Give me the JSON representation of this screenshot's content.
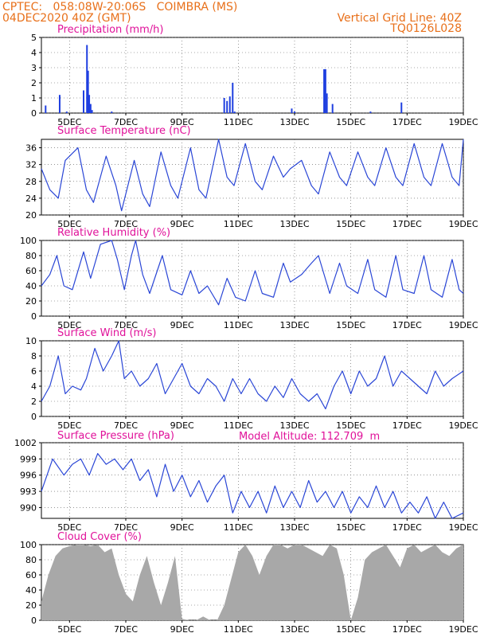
{
  "header": {
    "left_line1": "CPTEC:   058:08W-20:06S   COIMBRA (MS)",
    "left_line2": "04DEC2020 40Z (GMT)",
    "right_line1": "Vertical Grid Line: 40Z",
    "right_line2": "TQ0126L028"
  },
  "extra_label": "Model Altitude: 112.709  m",
  "x_ticks": [
    "5DEC",
    "7DEC",
    "9DEC",
    "11DEC",
    "13DEC",
    "15DEC",
    "17DEC",
    "19DEC"
  ],
  "colors": {
    "header": "#e8701a",
    "title": "#e0129a",
    "line": "#2a46d6",
    "bar": "#1f3fe0",
    "cloud": "#a8a8a8",
    "grid": "#555555"
  },
  "chart_data": [
    {
      "type": "bar",
      "title": "Precipitation (mm/h)",
      "ylim": [
        0,
        5
      ],
      "yticks": [
        "0",
        "1",
        "2",
        "3",
        "4",
        "5"
      ],
      "x": [
        "4.15",
        "4.65",
        "4.9",
        "5.5",
        "5.62",
        "5.66",
        "5.7",
        "5.75",
        "5.8",
        "6.5",
        "10.5",
        "10.6",
        "10.7",
        "10.8",
        "10.87",
        "12.9",
        "13.0",
        "14.05",
        "14.1",
        "14.15",
        "14.35",
        "15.7",
        "16.8"
      ],
      "values": [
        0.5,
        1.2,
        0.1,
        1.5,
        4.5,
        2.8,
        1.2,
        0.6,
        0.2,
        0.1,
        1.0,
        0.8,
        1.1,
        2.0,
        0.1,
        0.3,
        0.1,
        2.9,
        2.9,
        1.3,
        0.6,
        0.1,
        0.7
      ]
    },
    {
      "type": "line",
      "title": "Surface Temperature (nC)",
      "ylim": [
        20,
        38
      ],
      "yticks": [
        "20",
        "24",
        "28",
        "32",
        "36"
      ],
      "x": [
        4,
        4.3,
        4.6,
        4.85,
        5.3,
        5.6,
        5.85,
        6.3,
        6.65,
        6.85,
        7.3,
        7.6,
        7.85,
        8.25,
        8.6,
        8.85,
        9.3,
        9.6,
        9.85,
        10.3,
        10.6,
        10.85,
        11.25,
        11.6,
        11.85,
        12.25,
        12.6,
        12.85,
        13.25,
        13.6,
        13.85,
        14.25,
        14.6,
        14.85,
        15.25,
        15.6,
        15.85,
        16.25,
        16.6,
        16.85,
        17.25,
        17.6,
        17.85,
        18.25,
        18.6,
        18.85,
        19
      ],
      "values": [
        31,
        26,
        24,
        33,
        36,
        26,
        23,
        34,
        27,
        21,
        33,
        25,
        22,
        35,
        27,
        24,
        36,
        26,
        24,
        38,
        29,
        27,
        37,
        28,
        26,
        34,
        29,
        31,
        33,
        27,
        25,
        35,
        29,
        27,
        35,
        29,
        27,
        36,
        29,
        27,
        37,
        29,
        27,
        37,
        29,
        27,
        38
      ]
    },
    {
      "type": "line",
      "title": "Relative Humidity (%)",
      "ylim": [
        0,
        100
      ],
      "yticks": [
        "0",
        "20",
        "40",
        "60",
        "80",
        "100"
      ],
      "x": [
        4,
        4.3,
        4.55,
        4.8,
        5.1,
        5.5,
        5.75,
        6.1,
        6.5,
        6.7,
        6.95,
        7.2,
        7.35,
        7.6,
        7.85,
        8.3,
        8.6,
        9.0,
        9.3,
        9.6,
        9.9,
        10.3,
        10.6,
        10.9,
        11.25,
        11.6,
        11.85,
        12.25,
        12.6,
        12.85,
        13.25,
        13.6,
        13.85,
        14.25,
        14.6,
        14.85,
        15.25,
        15.6,
        15.85,
        16.25,
        16.6,
        16.85,
        17.25,
        17.6,
        17.85,
        18.25,
        18.6,
        18.85,
        19
      ],
      "values": [
        40,
        55,
        80,
        40,
        35,
        85,
        50,
        95,
        100,
        75,
        35,
        80,
        100,
        55,
        30,
        80,
        35,
        28,
        60,
        30,
        40,
        15,
        50,
        25,
        20,
        60,
        30,
        25,
        70,
        45,
        55,
        70,
        80,
        30,
        70,
        40,
        30,
        75,
        35,
        25,
        80,
        35,
        30,
        80,
        35,
        25,
        75,
        35,
        30
      ]
    },
    {
      "type": "line",
      "title": "Surface Wind (m/s)",
      "ylim": [
        0,
        10
      ],
      "yticks": [
        "0",
        "2",
        "4",
        "6",
        "8",
        "10"
      ],
      "x": [
        4,
        4.3,
        4.6,
        4.85,
        5.1,
        5.4,
        5.6,
        5.9,
        6.2,
        6.5,
        6.75,
        6.95,
        7.2,
        7.5,
        7.8,
        8.1,
        8.4,
        8.7,
        9.0,
        9.3,
        9.6,
        9.9,
        10.2,
        10.5,
        10.8,
        11.1,
        11.4,
        11.7,
        12.0,
        12.3,
        12.6,
        12.9,
        13.2,
        13.5,
        13.8,
        14.1,
        14.4,
        14.7,
        15.0,
        15.3,
        15.6,
        15.9,
        16.2,
        16.5,
        16.8,
        17.1,
        17.4,
        17.7,
        18.0,
        18.3,
        18.6,
        19
      ],
      "values": [
        2,
        4,
        8,
        3,
        4,
        3.5,
        5,
        9,
        6,
        8,
        10,
        5,
        6,
        4,
        5,
        7,
        3,
        5,
        7,
        4,
        3,
        5,
        4,
        2,
        5,
        3,
        5,
        3,
        2,
        4,
        2.5,
        5,
        3,
        2,
        3,
        1,
        4,
        6,
        3,
        6,
        4,
        5,
        8,
        4,
        6,
        5,
        4,
        3,
        6,
        4,
        5,
        6
      ]
    },
    {
      "type": "line",
      "title": "Surface Pressure (hPa)",
      "ylim": [
        988,
        1002
      ],
      "yticks": [
        "990",
        "993",
        "996",
        "999",
        "1002"
      ],
      "x": [
        4,
        4.4,
        4.8,
        5.1,
        5.4,
        5.7,
        6.0,
        6.3,
        6.6,
        6.9,
        7.2,
        7.5,
        7.8,
        8.1,
        8.4,
        8.7,
        9.0,
        9.3,
        9.6,
        9.9,
        10.2,
        10.5,
        10.8,
        11.1,
        11.4,
        11.7,
        12.0,
        12.3,
        12.6,
        12.9,
        13.2,
        13.5,
        13.8,
        14.1,
        14.4,
        14.7,
        15.0,
        15.3,
        15.6,
        15.9,
        16.2,
        16.5,
        16.8,
        17.1,
        17.4,
        17.7,
        18.0,
        18.3,
        18.6,
        19
      ],
      "values": [
        993,
        999,
        996,
        998,
        999,
        996,
        1000,
        998,
        999,
        997,
        999,
        995,
        997,
        992,
        998,
        993,
        996,
        992,
        995,
        991,
        994,
        996,
        989,
        993,
        990,
        993,
        989,
        994,
        990,
        993,
        990,
        995,
        991,
        993,
        990,
        993,
        989,
        992,
        990,
        994,
        990,
        993,
        989,
        991,
        989,
        992,
        988,
        991,
        988,
        989
      ]
    },
    {
      "type": "area",
      "title": "Cloud Cover (%)",
      "ylim": [
        0,
        100
      ],
      "yticks": [
        "0",
        "20",
        "40",
        "60",
        "80",
        "100"
      ],
      "x": [
        4,
        4.25,
        4.5,
        4.75,
        5.0,
        5.25,
        5.5,
        5.75,
        6.0,
        6.25,
        6.5,
        6.75,
        7.0,
        7.25,
        7.5,
        7.75,
        8.0,
        8.25,
        8.5,
        8.75,
        9.0,
        9.25,
        9.5,
        9.75,
        10.0,
        10.25,
        10.5,
        10.75,
        11.0,
        11.25,
        11.5,
        11.75,
        12.0,
        12.25,
        12.5,
        12.75,
        13.0,
        13.25,
        13.5,
        13.75,
        14.0,
        14.25,
        14.5,
        14.75,
        15.0,
        15.25,
        15.5,
        15.75,
        16.0,
        16.25,
        16.5,
        16.75,
        17.0,
        17.25,
        17.5,
        17.75,
        18.0,
        18.25,
        18.5,
        18.75,
        19
      ],
      "values": [
        25,
        60,
        85,
        95,
        98,
        100,
        100,
        98,
        100,
        90,
        95,
        60,
        35,
        25,
        60,
        85,
        50,
        20,
        50,
        85,
        2,
        0,
        0,
        5,
        0,
        0,
        20,
        55,
        90,
        100,
        85,
        60,
        85,
        100,
        100,
        95,
        100,
        100,
        95,
        90,
        85,
        100,
        95,
        60,
        0,
        30,
        80,
        90,
        95,
        100,
        85,
        70,
        95,
        100,
        90,
        95,
        100,
        90,
        85,
        95,
        100
      ]
    }
  ]
}
